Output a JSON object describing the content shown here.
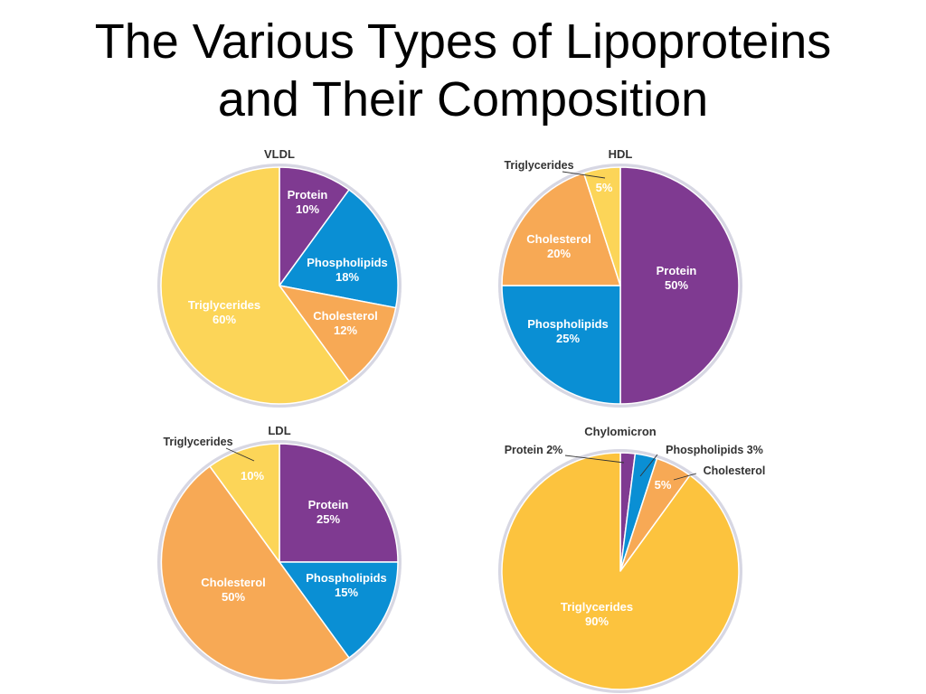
{
  "page": {
    "title_line1": "The Various Types of Lipoproteins",
    "title_line2": "and Their Composition"
  },
  "colors": {
    "Protein": "#7f3a91",
    "Phospholipids": "#0a8fd4",
    "Cholesterol": "#f7a955",
    "Triglycerides": "#fcd558",
    "Triglycerides_chylomicron": "#fcc33e",
    "rim": "#d7d7e3"
  },
  "chart_data": [
    {
      "type": "pie",
      "title": "VLDL",
      "slices": [
        {
          "name": "Protein",
          "value": 10,
          "label": "Protein",
          "value_label": "10%"
        },
        {
          "name": "Phospholipids",
          "value": 18,
          "label": "Phospholipids",
          "value_label": "18%"
        },
        {
          "name": "Cholesterol",
          "value": 12,
          "label": "Cholesterol",
          "value_label": "12%"
        },
        {
          "name": "Triglycerides",
          "value": 60,
          "label": "Triglycerides",
          "value_label": "60%"
        }
      ]
    },
    {
      "type": "pie",
      "title": "HDL",
      "slices": [
        {
          "name": "Protein",
          "value": 50,
          "label": "Protein",
          "value_label": "50%"
        },
        {
          "name": "Phospholipids",
          "value": 25,
          "label": "Phospholipids",
          "value_label": "25%"
        },
        {
          "name": "Cholesterol",
          "value": 20,
          "label": "Cholesterol",
          "value_label": "20%"
        },
        {
          "name": "Triglycerides",
          "value": 5,
          "label": "Triglycerides",
          "value_label": "5%"
        }
      ]
    },
    {
      "type": "pie",
      "title": "LDL",
      "slices": [
        {
          "name": "Protein",
          "value": 25,
          "label": "Protein",
          "value_label": "25%"
        },
        {
          "name": "Phospholipids",
          "value": 15,
          "label": "Phospholipids",
          "value_label": "15%"
        },
        {
          "name": "Cholesterol",
          "value": 50,
          "label": "Cholesterol",
          "value_label": "50%"
        },
        {
          "name": "Triglycerides",
          "value": 10,
          "label": "Triglycerides",
          "value_label": "10%"
        }
      ]
    },
    {
      "type": "pie",
      "title": "Chylomicron",
      "slices": [
        {
          "name": "Protein",
          "value": 2,
          "label": "Protein 2%",
          "value_label": ""
        },
        {
          "name": "Phospholipids",
          "value": 3,
          "label": "Phospholipids 3%",
          "value_label": ""
        },
        {
          "name": "Cholesterol",
          "value": 5,
          "label": "Cholesterol",
          "value_label": "5%"
        },
        {
          "name": "Triglycerides",
          "value": 90,
          "label": "Triglycerides",
          "value_label": "90%"
        }
      ]
    }
  ]
}
